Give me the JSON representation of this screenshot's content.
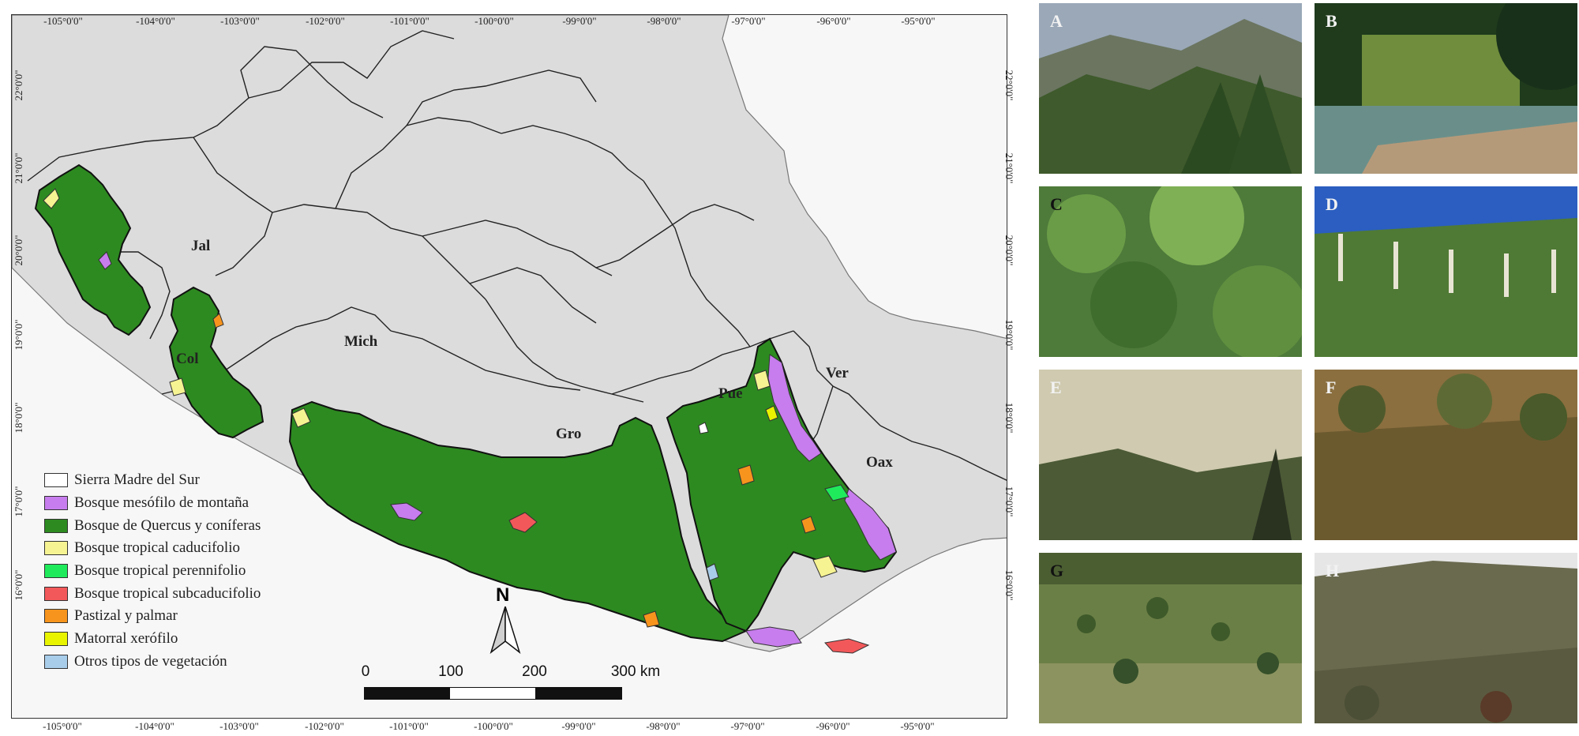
{
  "map": {
    "top_ticks": [
      "-105°0'0\"",
      "-104°0'0\"",
      "-103°0'0\"",
      "-102°0'0\"",
      "-101°0'0\"",
      "-100°0'0\"",
      "-99°0'0\"",
      "-98°0'0\"",
      "-97°0'0\"",
      "-96°0'0\"",
      "-95°0'0\""
    ],
    "bottom_ticks": [
      "-105°0'0\"",
      "-104°0'0\"",
      "-103°0'0\"",
      "-102°0'0\"",
      "-101°0'0\"",
      "-100°0'0\"",
      "-99°0'0\"",
      "-98°0'0\"",
      "-97°0'0\"",
      "-96°0'0\"",
      "-95°0'0\""
    ],
    "left_ticks": [
      "22°0'0\"",
      "21°0'0\"",
      "20°0'0\"",
      "19°0'0\"",
      "18°0'0\"",
      "17°0'0\"",
      "16°0'0\""
    ],
    "right_ticks": [
      "22°0'0\"",
      "21°0'0\"",
      "20°0'0\"",
      "19°0'0\"",
      "18°0'0\"",
      "17°0'0\"",
      "16°0'0\""
    ],
    "states": {
      "jal": "Jal",
      "col": "Col",
      "mich": "Mich",
      "gro": "Gro",
      "pue": "Pue",
      "ver": "Ver",
      "oax": "Oax"
    },
    "north": "N",
    "scale": {
      "s0": "0",
      "s100": "100",
      "s200": "200",
      "s300": "300 km"
    }
  },
  "legend": [
    {
      "label": "Sierra Madre del Sur",
      "color": "#ffffff"
    },
    {
      "label": "Bosque mesófilo de montaña",
      "color": "#c77ded"
    },
    {
      "label": "Bosque de Quercus y coníferas",
      "color": "#2d8a20"
    },
    {
      "label": "Bosque tropical caducifolio",
      "color": "#f6f392"
    },
    {
      "label": "Bosque tropical perennifolio",
      "color": "#1fea5c"
    },
    {
      "label": "Bosque tropical subcaducifolio",
      "color": "#f2585a"
    },
    {
      "label": "Pastizal y palmar",
      "color": "#f7941d"
    },
    {
      "label": "Matorral xerófilo",
      "color": "#e8f400"
    },
    {
      "label": "Otros tipos de vegetación",
      "color": "#a8cdea"
    }
  ],
  "photos": {
    "a": "A",
    "b": "B",
    "c": "C",
    "d": "D",
    "e": "E",
    "f": "F",
    "g": "G",
    "h": "H"
  },
  "colors": {
    "land": "#dcdcdc",
    "water": "#ffffff",
    "border": "#222222"
  }
}
